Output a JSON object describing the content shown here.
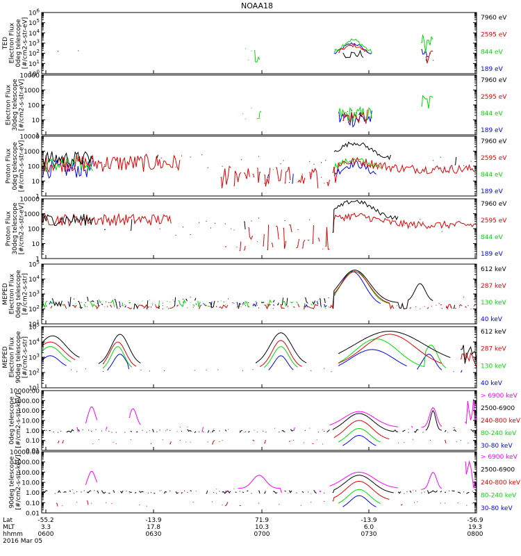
{
  "title": "NOAA18",
  "colors": {
    "black": "#000000",
    "red": "#e00000",
    "green": "#00dd00",
    "blue": "#0000ee",
    "magenta": "#ff00ff"
  },
  "x_axis": {
    "rows": [
      {
        "label": "Lat",
        "ticks": [
          "-55.2",
          "-13.9",
          "71.9",
          "-13.9",
          "-56.9"
        ]
      },
      {
        "label": "MLT",
        "ticks": [
          "3.3",
          "17.8",
          "10.3",
          "6.0",
          "19.3"
        ]
      },
      {
        "label": "hhmm",
        "ticks": [
          "0600",
          "0630",
          "0700",
          "0730",
          "0800"
        ]
      }
    ],
    "date": "2016 Mar 05"
  },
  "chart_data": [
    {
      "type": "scatter",
      "id": "ted-electron-0deg",
      "ylabel": [
        "TED",
        "Electron Flux",
        "0deg telescope",
        "[#/cm2-s-str-eV]"
      ],
      "yscale": "log",
      "ylim": [
        1,
        1000000
      ],
      "ytick_labels": [
        "10^0",
        "10^1",
        "10^2",
        "10^3",
        "10^4",
        "10^5",
        "10^6"
      ],
      "legend": [
        {
          "text": "7960 eV",
          "color": "#000000"
        },
        {
          "text": "2595 eV",
          "color": "#e00000"
        },
        {
          "text": "844 eV",
          "color": "#00dd00"
        },
        {
          "text": "189 eV",
          "color": "#0000ee"
        }
      ]
    },
    {
      "type": "scatter",
      "id": "ted-electron-30deg",
      "ylabel": [
        "Electron Flux",
        "30deg telescope",
        "[#/cm2-s-str-eV]"
      ],
      "yscale": "log",
      "ylim": [
        1,
        10000
      ],
      "ytick_labels": [
        "1",
        "10",
        "100",
        "1000",
        "10000"
      ],
      "legend": [
        {
          "text": "7960 eV",
          "color": "#000000"
        },
        {
          "text": "2595 eV",
          "color": "#e00000"
        },
        {
          "text": "844 eV",
          "color": "#00dd00"
        },
        {
          "text": "189 eV",
          "color": "#0000ee"
        }
      ]
    },
    {
      "type": "scatter",
      "id": "ted-proton-0deg",
      "ylabel": [
        "Proton Flux",
        "0deg telescope",
        "[#/cm2-s-str-eV]"
      ],
      "yscale": "log",
      "ylim": [
        1,
        10000
      ],
      "ytick_labels": [
        "1",
        "10",
        "100",
        "1000",
        "10000"
      ],
      "legend": [
        {
          "text": "7960 eV",
          "color": "#000000"
        },
        {
          "text": "2595 eV",
          "color": "#e00000"
        },
        {
          "text": "844 eV",
          "color": "#00dd00"
        },
        {
          "text": "189 eV",
          "color": "#0000ee"
        }
      ]
    },
    {
      "type": "scatter",
      "id": "ted-proton-30deg",
      "ylabel": [
        "Proton Flux",
        "30deg telescope",
        "[#/cm2-s-str-eV]"
      ],
      "yscale": "log",
      "ylim": [
        1,
        10000
      ],
      "ytick_labels": [
        "1",
        "10",
        "100",
        "1000",
        "10000"
      ],
      "legend": [
        {
          "text": "7960 eV",
          "color": "#000000"
        },
        {
          "text": "2595 eV",
          "color": "#e00000"
        },
        {
          "text": "844 eV",
          "color": "#00dd00"
        },
        {
          "text": "189 eV",
          "color": "#0000ee"
        }
      ]
    },
    {
      "type": "scatter",
      "id": "meped-electron-0deg",
      "ylabel": [
        "MEPED",
        "Electron Flux",
        "0deg telescope",
        "[#/cm2-s-str]"
      ],
      "yscale": "log",
      "ylim": [
        10,
        100000
      ],
      "ytick_labels": [
        "10^1",
        "10^2",
        "10^3",
        "10^4",
        "10^5"
      ],
      "legend": [
        {
          "text": "612 keV",
          "color": "#000000"
        },
        {
          "text": "287 keV",
          "color": "#e00000"
        },
        {
          "text": "130 keV",
          "color": "#00dd00"
        },
        {
          "text": "40 keV",
          "color": "#0000ee"
        }
      ]
    },
    {
      "type": "scatter",
      "id": "meped-electron-90deg",
      "ylabel": [
        "MEPED",
        "Electron Flux",
        "90deg telescope",
        "[#/cm2-s-str]"
      ],
      "yscale": "log",
      "ylim": [
        10,
        100000
      ],
      "ytick_labels": [
        "10^1",
        "10^2",
        "10^3",
        "10^4",
        "10^5"
      ],
      "legend": [
        {
          "text": "612 keV",
          "color": "#000000"
        },
        {
          "text": "287 keV",
          "color": "#e00000"
        },
        {
          "text": "130 keV",
          "color": "#00dd00"
        },
        {
          "text": "40 keV",
          "color": "#0000ee"
        }
      ]
    },
    {
      "type": "scatter",
      "id": "meped-proton-0deg",
      "ylabel": [
        "0deg telescope",
        "[#/cm2-s-str-keV]"
      ],
      "yscale": "log",
      "ylim": [
        0.01,
        10000
      ],
      "ytick_labels": [
        "0.01",
        "0.10",
        "1.00",
        "10.00",
        "100.00",
        "1000.00",
        "10000.00"
      ],
      "legend": [
        {
          "text": "> 6900 keV",
          "color": "#ff00ff"
        },
        {
          "text": "2500-6900",
          "color": "#000000"
        },
        {
          "text": "240-800 keV",
          "color": "#e00000"
        },
        {
          "text": "80-240 keV",
          "color": "#00dd00"
        },
        {
          "text": "30-80 keV",
          "color": "#0000ee"
        }
      ]
    },
    {
      "type": "scatter",
      "id": "meped-proton-90deg",
      "ylabel": [
        "90deg telescope",
        "[#/cm2-s-str-keV]"
      ],
      "yscale": "log",
      "ylim": [
        0.01,
        10000
      ],
      "ytick_labels": [
        "0.01",
        "0.10",
        "1.00",
        "10.00",
        "100.00",
        "1000.00",
        "10000.00"
      ],
      "legend": [
        {
          "text": "> 6900 keV",
          "color": "#ff00ff"
        },
        {
          "text": "2500-6900",
          "color": "#000000"
        },
        {
          "text": "240-800 keV",
          "color": "#e00000"
        },
        {
          "text": "80-240 keV",
          "color": "#00dd00"
        },
        {
          "text": "30-80 keV",
          "color": "#0000ee"
        }
      ]
    }
  ]
}
